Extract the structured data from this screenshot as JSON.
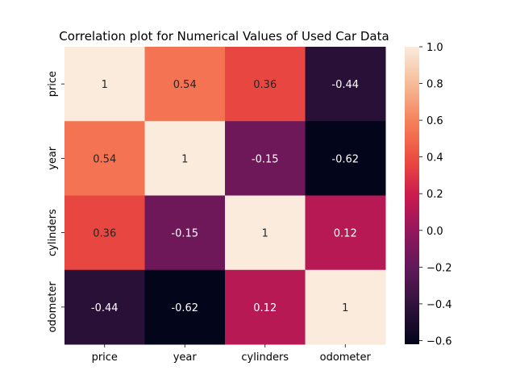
{
  "chart_data": {
    "type": "heatmap",
    "title": "Correlation plot for Numerical Values of Used Car Data",
    "row_labels": [
      "price",
      "year",
      "cylinders",
      "odometer"
    ],
    "col_labels": [
      "price",
      "year",
      "cylinders",
      "odometer"
    ],
    "values": [
      [
        1,
        0.54,
        0.36,
        -0.44
      ],
      [
        0.54,
        1,
        -0.15,
        -0.62
      ],
      [
        0.36,
        -0.15,
        1,
        0.12
      ],
      [
        -0.44,
        -0.62,
        0.12,
        1
      ]
    ],
    "annotations": [
      [
        "1",
        "0.54",
        "0.36",
        "-0.44"
      ],
      [
        "0.54",
        "1",
        "-0.15",
        "-0.62"
      ],
      [
        "0.36",
        "-0.15",
        "1",
        "0.12"
      ],
      [
        "-0.44",
        "-0.62",
        "0.12",
        "1"
      ]
    ],
    "colorbar": {
      "min": -0.62,
      "max": 1.0,
      "ticks": [
        1.0,
        0.8,
        0.6,
        0.4,
        0.2,
        0.0,
        -0.2,
        -0.4,
        -0.6
      ],
      "tick_labels": [
        "1.0",
        "0.8",
        "0.6",
        "0.4",
        "0.2",
        "0.0",
        "−0.2",
        "−0.4",
        "−0.6"
      ],
      "colormap": "rocket"
    },
    "grid": false,
    "legend": "colorbar-right"
  }
}
